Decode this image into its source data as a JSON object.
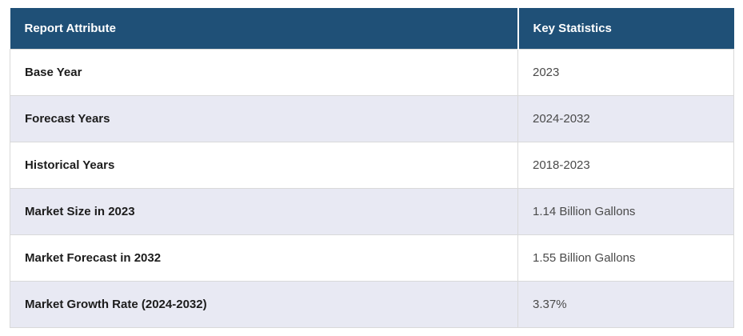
{
  "chart_data": {
    "type": "table",
    "title": "",
    "columns": [
      "Report Attribute",
      "Key Statistics"
    ],
    "rows": [
      [
        "Base Year",
        "2023"
      ],
      [
        "Forecast Years",
        "2024-2032"
      ],
      [
        "Historical Years",
        "2018-2023"
      ],
      [
        "Market Size in 2023",
        "1.14 Billion Gallons"
      ],
      [
        "Market Forecast in 2032",
        "1.55 Billion Gallons"
      ],
      [
        "Market Growth Rate (2024-2032)",
        "3.37%"
      ]
    ]
  },
  "colors": {
    "header_bg": "#1f5077",
    "header_text": "#ffffff",
    "row_alt_bg": "#e8e9f3",
    "border": "#d9d9d9",
    "attribute_text": "#1c1c1c",
    "value_text": "#4a4a4a"
  }
}
